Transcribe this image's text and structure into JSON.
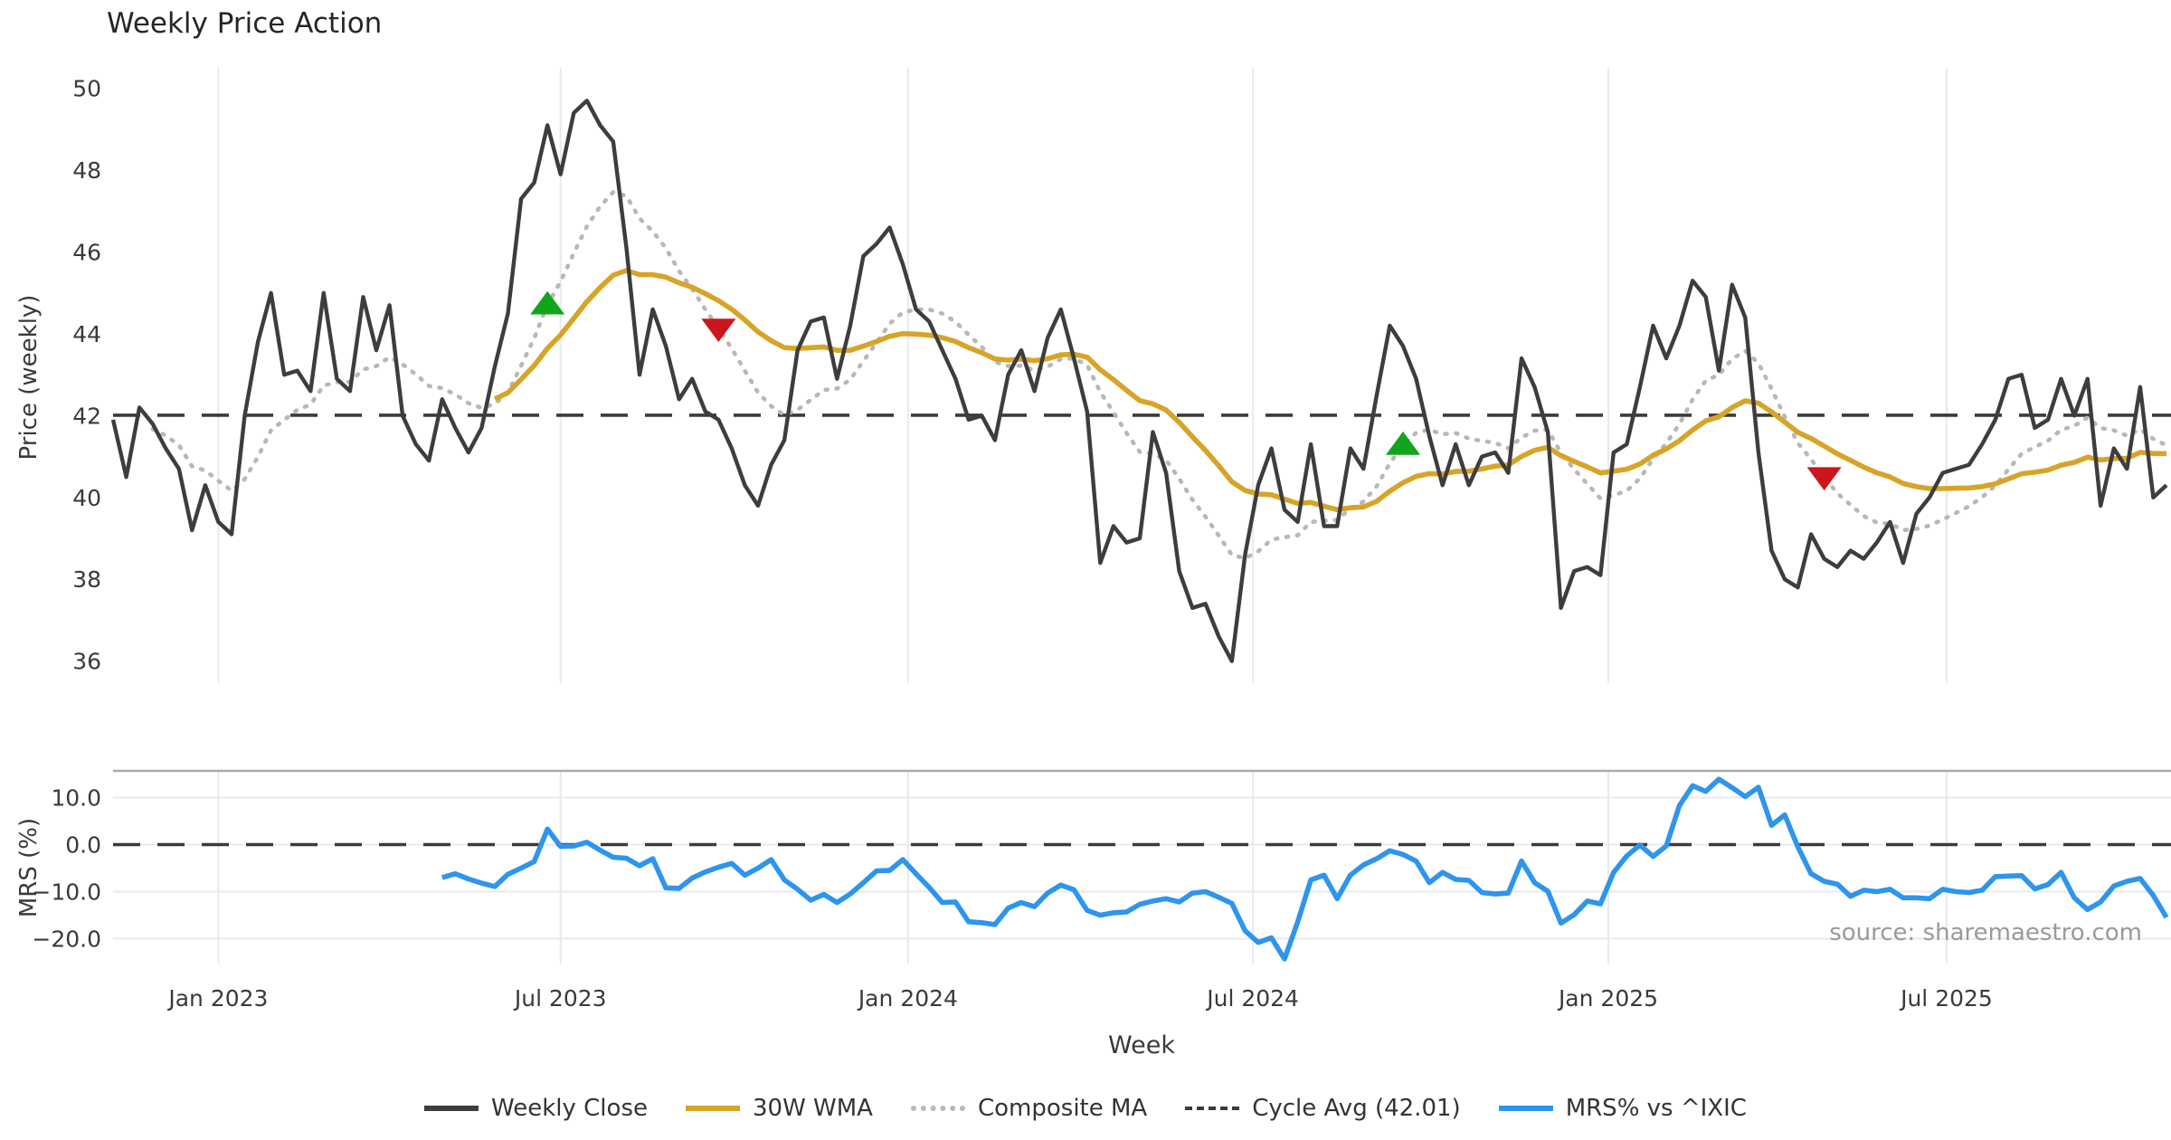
{
  "title": "Weekly Price Action",
  "watermark": "source: sharemaestro.com",
  "colors": {
    "close": "#3d3d3d",
    "wma": "#d7a428",
    "composite": "#b8b8b8",
    "cycle_avg": "#3a3a3a",
    "mrs": "#2e95ec",
    "buy_marker": "#12a51c",
    "sell_marker": "#cb161e",
    "gridline": "#e9e9f0",
    "spine": "#a9a9b0",
    "tick_text": "#3a3a3a"
  },
  "x_axis": {
    "label": "Week",
    "ticks": [
      {
        "label": "Jan 2023",
        "week": 8
      },
      {
        "label": "Jul 2023",
        "week": 34
      },
      {
        "label": "Jan 2024",
        "week": 60.4
      },
      {
        "label": "Jul 2024",
        "week": 86.6
      },
      {
        "label": "Jan 2025",
        "week": 113.6
      },
      {
        "label": "Jul 2025",
        "week": 139.3
      }
    ],
    "weeks_total": 157
  },
  "legend": [
    {
      "label": "Weekly Close",
      "swatch": "solid",
      "color": "#3d3d3d"
    },
    {
      "label": "30W WMA",
      "swatch": "solid",
      "color": "#d7a428"
    },
    {
      "label": "Composite MA",
      "swatch": "dotted",
      "color": "#b8b8b8"
    },
    {
      "label": "Cycle Avg (42.01)",
      "swatch": "dashed",
      "color": "#3a3a3a"
    },
    {
      "label": "MRS% vs ^IXIC",
      "swatch": "solid",
      "color": "#2e95ec"
    }
  ],
  "chart_data": [
    {
      "type": "line",
      "panel": "price",
      "ylabel": "Price (weekly)",
      "ylim": [
        35.5,
        50.5
      ],
      "yticks": [
        50,
        48,
        46,
        44,
        42,
        40,
        38,
        36
      ],
      "grid": "vertical-only",
      "cycle_avg": 42.01,
      "series": [
        {
          "name": "Weekly Close",
          "style": "solid",
          "start_week": 0,
          "values": [
            41.9,
            40.5,
            42.2,
            41.8,
            41.2,
            40.7,
            39.2,
            40.3,
            39.4,
            39.1,
            42.0,
            43.8,
            45.0,
            43.0,
            43.1,
            42.6,
            45.0,
            42.9,
            42.6,
            44.9,
            43.6,
            44.7,
            42.0,
            41.3,
            40.9,
            42.4,
            41.7,
            41.1,
            41.7,
            43.2,
            44.5,
            47.3,
            47.7,
            49.1,
            47.9,
            49.4,
            49.7,
            49.1,
            48.7,
            46.1,
            43.0,
            44.6,
            43.7,
            42.4,
            42.9,
            42.1,
            41.9,
            41.2,
            40.3,
            39.8,
            40.8,
            41.4,
            43.6,
            44.3,
            44.4,
            42.9,
            44.2,
            45.9,
            46.2,
            46.6,
            45.7,
            44.6,
            44.3,
            43.6,
            42.9,
            41.9,
            42.0,
            41.4,
            43.0,
            43.6,
            42.6,
            43.9,
            44.6,
            43.4,
            42.1,
            38.4,
            39.3,
            38.9,
            39.0,
            41.6,
            40.6,
            38.2,
            37.3,
            37.4,
            36.6,
            36.0,
            38.6,
            40.3,
            41.2,
            39.7,
            39.4,
            41.3,
            39.3,
            39.3,
            41.2,
            40.7,
            42.5,
            44.2,
            43.7,
            42.9,
            41.5,
            40.3,
            41.3,
            40.3,
            41.0,
            41.1,
            40.6,
            43.4,
            42.7,
            41.6,
            37.3,
            38.2,
            38.3,
            38.1,
            41.1,
            41.3,
            42.7,
            44.2,
            43.4,
            44.2,
            45.3,
            44.9,
            43.1,
            45.2,
            44.4,
            41.1,
            38.7,
            38.0,
            37.8,
            39.1,
            38.5,
            38.3,
            38.7,
            38.5,
            38.9,
            39.4,
            38.4,
            39.6,
            40.0,
            40.6,
            40.7,
            40.8,
            41.3,
            41.9,
            42.9,
            43.0,
            41.7,
            41.9,
            42.9,
            42.0,
            42.9,
            39.8,
            41.2,
            40.7,
            42.7,
            40.0,
            40.3
          ]
        },
        {
          "name": "30W WMA",
          "style": "solid",
          "derived": "weighted moving average, 30-week window, of Weekly Close"
        },
        {
          "name": "Composite MA",
          "style": "dotted",
          "derived": "composite of 10-week and 20-week weighted moving averages of Weekly Close"
        },
        {
          "name": "Cycle Avg (42.01)",
          "style": "dashed",
          "value": 42.01
        }
      ],
      "markers": [
        {
          "week": 33,
          "type": "buy"
        },
        {
          "week": 46,
          "type": "sell"
        },
        {
          "week": 98,
          "type": "buy"
        },
        {
          "week": 130,
          "type": "sell"
        }
      ]
    },
    {
      "type": "line",
      "panel": "mrs",
      "ylabel": "MRS (%)",
      "ylim": [
        -25.4,
        15.7
      ],
      "yticks": [
        10.0,
        0.0,
        -10.0,
        -20.0
      ],
      "ytick_labels": [
        "10.0",
        "0.0",
        "−10.0",
        "−20.0"
      ],
      "zero_line": 0,
      "grid": "both",
      "series": [
        {
          "name": "MRS% vs ^IXIC",
          "style": "solid",
          "start_week": 25,
          "values": [
            -7.0,
            -6.2,
            -7.3,
            -8.2,
            -8.9,
            -6.3,
            -5.0,
            -3.6,
            3.3,
            -0.4,
            -0.3,
            0.5,
            -1.2,
            -2.7,
            -2.9,
            -4.5,
            -3.0,
            -9.2,
            -9.3,
            -7.1,
            -5.8,
            -4.8,
            -4.0,
            -6.5,
            -5.0,
            -3.2,
            -7.5,
            -9.5,
            -11.8,
            -10.6,
            -12.3,
            -10.5,
            -8.1,
            -5.6,
            -5.5,
            -3.2,
            -6.2,
            -9.1,
            -12.3,
            -12.2,
            -16.4,
            -16.6,
            -17.0,
            -13.5,
            -12.3,
            -13.2,
            -10.3,
            -8.6,
            -9.6,
            -14.0,
            -15.0,
            -14.5,
            -14.3,
            -12.7,
            -12.0,
            -11.5,
            -12.2,
            -10.3,
            -10.0,
            -11.2,
            -12.5,
            -18.3,
            -20.8,
            -19.8,
            -24.3,
            -16.4,
            -7.5,
            -6.5,
            -11.5,
            -6.5,
            -4.3,
            -3.0,
            -1.3,
            -2.1,
            -3.5,
            -8.1,
            -5.9,
            -7.4,
            -7.6,
            -10.2,
            -10.5,
            -10.3,
            -3.5,
            -8.1,
            -9.9,
            -16.7,
            -14.9,
            -12.0,
            -12.6,
            -5.9,
            -2.4,
            -0.1,
            -2.5,
            -0.3,
            8.3,
            12.5,
            11.3,
            13.9,
            12.1,
            10.2,
            12.2,
            4.1,
            6.3,
            -0.5,
            -6.2,
            -7.8,
            -8.4,
            -11.0,
            -9.7,
            -10.0,
            -9.5,
            -11.3,
            -11.3,
            -11.5,
            -9.5,
            -10.0,
            -10.2,
            -9.7,
            -6.8,
            -6.7,
            -6.6,
            -9.4,
            -8.5,
            -5.9,
            -11.3,
            -13.8,
            -12.2,
            -8.8,
            -7.8,
            -7.2,
            -10.8,
            -15.5
          ]
        }
      ]
    }
  ]
}
